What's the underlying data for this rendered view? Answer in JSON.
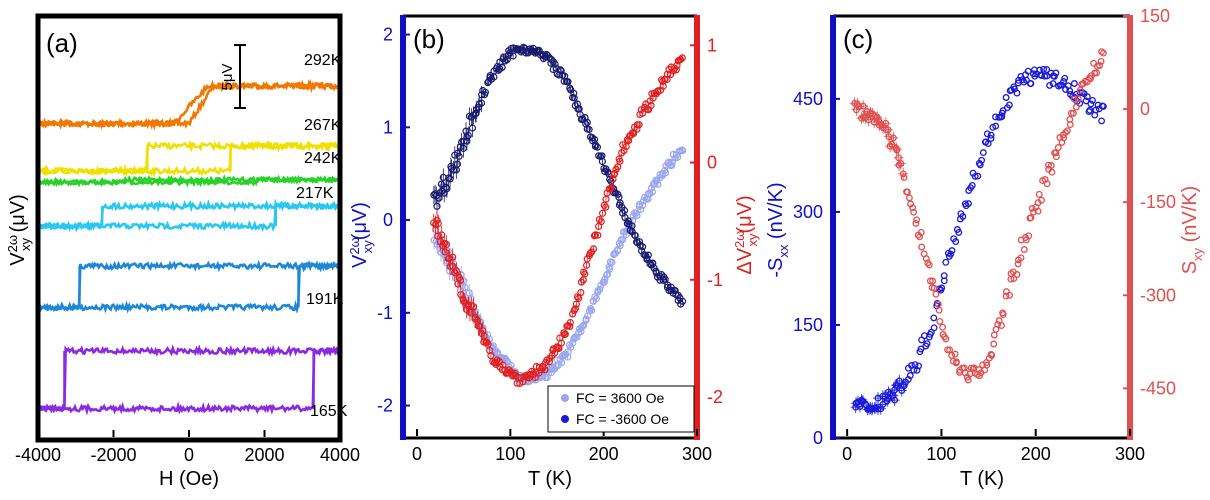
{
  "chart_data": [
    {
      "type": "line",
      "panel_label": "(a)",
      "xlabel": "H (Oe)",
      "ylabel": "V",
      "ylabel_sup": "2ω",
      "ylabel_sub": "xy",
      "ylabel_unit": " (μV)",
      "xlim": [
        -4000,
        4000
      ],
      "xticks": [
        "-4000",
        "-2000",
        "0",
        "2000",
        "4000"
      ],
      "y_ticks_shown": false,
      "scale_bar": "5μV",
      "series": [
        {
          "name": "292K",
          "color": "#f07800",
          "type": "smooth",
          "step_microvolt": 3.0,
          "coercive_field_oe": [
            0,
            650
          ],
          "offset_microvolt": 0
        },
        {
          "name": "267K",
          "color": "#f0e000",
          "type": "square",
          "step_microvolt": 2.0,
          "coercive_field_oe": [
            -1100,
            1100
          ],
          "offset_microvolt": -4.8
        },
        {
          "name": "242K",
          "color": "#28d228",
          "type": "flat",
          "step_microvolt": 0.2,
          "coercive_field_oe": [
            -1800,
            1800
          ],
          "offset_microvolt": -7.5
        },
        {
          "name": "217K",
          "color": "#28c8f0",
          "type": "square",
          "step_microvolt": 1.6,
          "coercive_field_oe": [
            -2300,
            2300
          ],
          "offset_microvolt": -9.6
        },
        {
          "name": "191K",
          "color": "#1e88d8",
          "type": "square",
          "step_microvolt": 3.3,
          "coercive_field_oe": [
            -2900,
            2900
          ],
          "offset_microvolt": -14.4
        },
        {
          "name": "165K",
          "color": "#8a2be2",
          "type": "square",
          "step_microvolt": 4.6,
          "coercive_field_oe": [
            -3300,
            3300
          ],
          "offset_microvolt": -21.2
        }
      ]
    },
    {
      "type": "scatter",
      "panel_label": "(b)",
      "xlabel": "T (K)",
      "xlim": [
        -15,
        300
      ],
      "xticks": [
        "0",
        "100",
        "200",
        "300"
      ],
      "left_axis": {
        "label": "V",
        "label_sup": "2ω",
        "label_sub": "xy",
        "label_unit": "(μV)",
        "color": "#1010c0",
        "ylim": [
          -2.35,
          2.2
        ],
        "ticks": [
          "-2",
          "-1",
          "0",
          "1",
          "2"
        ]
      },
      "right_axis": {
        "label": "ΔV",
        "label_sup": "2ω",
        "label_sub": "xy",
        "label_unit": "(μV)",
        "color": "#e02020",
        "ylim": [
          -2.35,
          1.25
        ],
        "ticks": [
          "-2",
          "-1",
          "0",
          "1"
        ]
      },
      "legend": {
        "position": "bottom-right",
        "entries": [
          "FC = 3600 Oe",
          "FC = -3600 Oe"
        ]
      },
      "series": [
        {
          "name": "FC = 3600 Oe",
          "axis": "left",
          "color": "#9aa6ee",
          "x": [
            20,
            40,
            60,
            80,
            100,
            110,
            120,
            140,
            160,
            180,
            200,
            220,
            240,
            260,
            285
          ],
          "y": [
            -0.2,
            -0.55,
            -0.95,
            -1.35,
            -1.6,
            -1.7,
            -1.72,
            -1.65,
            -1.45,
            -1.1,
            -0.65,
            -0.2,
            0.15,
            0.45,
            0.8
          ]
        },
        {
          "name": "FC = -3600 Oe",
          "axis": "left",
          "color": "#1a1a6e",
          "x": [
            20,
            40,
            60,
            80,
            100,
            110,
            120,
            140,
            160,
            180,
            200,
            220,
            240,
            260,
            285
          ],
          "y": [
            0.2,
            0.6,
            1.1,
            1.55,
            1.8,
            1.85,
            1.84,
            1.75,
            1.5,
            1.05,
            0.6,
            0.1,
            -0.3,
            -0.6,
            -0.9
          ]
        },
        {
          "name": "ΔV2ω xy",
          "axis": "right",
          "color": "#e02020",
          "x": [
            20,
            40,
            60,
            80,
            100,
            110,
            120,
            140,
            160,
            180,
            200,
            220,
            240,
            260,
            285
          ],
          "y": [
            -0.55,
            -0.9,
            -1.3,
            -1.65,
            -1.8,
            -1.85,
            -1.82,
            -1.72,
            -1.45,
            -0.95,
            -0.4,
            0.1,
            0.4,
            0.65,
            0.9
          ]
        }
      ]
    },
    {
      "type": "scatter",
      "panel_label": "(c)",
      "xlabel": "T (K)",
      "xlim": [
        -15,
        300
      ],
      "xticks": [
        "0",
        "100",
        "200",
        "300"
      ],
      "left_axis": {
        "label": "-S",
        "label_sub": "xx",
        "label_unit": " (nV/K)",
        "color": "#1010c0",
        "ylim": [
          0,
          560
        ],
        "ticks": [
          "0",
          "150",
          "300",
          "450"
        ]
      },
      "right_axis": {
        "label": "S",
        "label_sub": "xy",
        "label_unit": " (nV/K)",
        "color": "#e05050",
        "ylim": [
          -530,
          150
        ],
        "ticks": [
          "-450",
          "-300",
          "-150",
          "0",
          "150"
        ]
      },
      "series": [
        {
          "name": "-Sxx",
          "axis": "left",
          "color": "#1a1ad8",
          "x": [
            10,
            30,
            50,
            70,
            90,
            110,
            130,
            150,
            170,
            190,
            210,
            230,
            250,
            270
          ],
          "y": [
            40,
            45,
            60,
            90,
            150,
            250,
            330,
            400,
            450,
            480,
            480,
            470,
            450,
            430
          ]
        },
        {
          "name": "Sxy",
          "axis": "right",
          "color": "#e05050",
          "x": [
            10,
            30,
            50,
            70,
            90,
            110,
            130,
            150,
            170,
            190,
            210,
            230,
            250,
            270
          ],
          "y": [
            0,
            -10,
            -60,
            -160,
            -280,
            -400,
            -430,
            -410,
            -300,
            -200,
            -120,
            -40,
            40,
            80
          ]
        }
      ]
    }
  ]
}
